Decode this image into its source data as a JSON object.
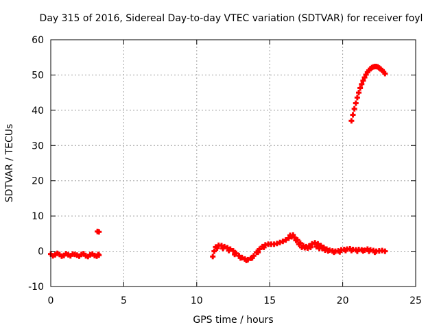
{
  "chart_data": {
    "type": "scatter",
    "title": "Day 315 of 2016, Sidereal Day-to-day VTEC variation (SDTVAR) for receiver foyl",
    "xlabel": "GPS time / hours",
    "ylabel": "SDTVAR / TECUs",
    "xlim": [
      0,
      25
    ],
    "ylim": [
      -10,
      60
    ],
    "xticks": [
      0,
      5,
      10,
      15,
      20,
      25
    ],
    "yticks": [
      -10,
      0,
      10,
      20,
      30,
      40,
      50,
      60
    ],
    "grid": true,
    "marker": "plus",
    "series": [
      {
        "name": "SDTVAR",
        "color": "#ff0000",
        "segments": [
          [
            [
              0.0,
              -0.8
            ],
            [
              0.3,
              -1.0
            ],
            [
              0.6,
              -0.9
            ],
            [
              0.9,
              -1.2
            ],
            [
              1.2,
              -1.0
            ],
            [
              1.5,
              -0.8
            ],
            [
              1.8,
              -1.1
            ],
            [
              2.1,
              -0.9
            ],
            [
              2.4,
              -1.3
            ],
            [
              2.7,
              -1.0
            ],
            [
              3.0,
              -1.2
            ],
            [
              3.3,
              -1.1
            ],
            [
              0.15,
              -1.3
            ],
            [
              0.45,
              -0.6
            ],
            [
              0.75,
              -1.4
            ],
            [
              1.05,
              -0.7
            ],
            [
              1.35,
              -1.3
            ],
            [
              1.65,
              -0.9
            ],
            [
              1.95,
              -1.4
            ],
            [
              2.25,
              -0.7
            ],
            [
              2.55,
              -1.5
            ],
            [
              2.85,
              -0.8
            ],
            [
              3.15,
              -1.4
            ],
            [
              3.25,
              -0.9
            ]
          ],
          [
            [
              3.2,
              5.6
            ],
            [
              3.3,
              5.5
            ]
          ],
          [
            [
              11.1,
              -1.5
            ],
            [
              11.2,
              0.0
            ],
            [
              11.3,
              1.2
            ],
            [
              11.5,
              1.7
            ],
            [
              11.7,
              1.6
            ],
            [
              11.9,
              1.3
            ],
            [
              12.1,
              1.0
            ],
            [
              12.3,
              0.6
            ],
            [
              12.5,
              0.1
            ],
            [
              12.7,
              -0.6
            ],
            [
              12.9,
              -1.3
            ],
            [
              13.1,
              -1.8
            ],
            [
              13.3,
              -2.2
            ],
            [
              13.5,
              -2.4
            ],
            [
              13.7,
              -2.0
            ],
            [
              13.9,
              -1.3
            ],
            [
              14.1,
              -0.3
            ],
            [
              14.3,
              0.6
            ],
            [
              14.5,
              1.3
            ],
            [
              14.7,
              1.8
            ],
            [
              14.9,
              2.0
            ],
            [
              15.1,
              2.0
            ],
            [
              15.3,
              2.0
            ],
            [
              15.5,
              2.2
            ],
            [
              15.7,
              2.5
            ],
            [
              15.9,
              2.8
            ],
            [
              16.1,
              3.2
            ],
            [
              16.3,
              3.7
            ],
            [
              16.5,
              4.1
            ],
            [
              16.7,
              3.9
            ],
            [
              16.9,
              3.2
            ],
            [
              17.1,
              2.3
            ],
            [
              17.3,
              1.6
            ],
            [
              17.5,
              1.3
            ],
            [
              17.7,
              1.5
            ],
            [
              17.9,
              2.1
            ],
            [
              18.1,
              2.4
            ],
            [
              18.3,
              2.1
            ],
            [
              18.5,
              1.6
            ],
            [
              18.7,
              1.1
            ],
            [
              18.9,
              0.6
            ],
            [
              19.1,
              0.3
            ],
            [
              19.3,
              0.1
            ],
            [
              19.5,
              0.0
            ],
            [
              19.7,
              0.1
            ],
            [
              19.9,
              0.4
            ],
            [
              20.1,
              0.5
            ],
            [
              20.3,
              0.6
            ],
            [
              20.5,
              0.7
            ],
            [
              20.7,
              0.5
            ],
            [
              20.9,
              0.4
            ],
            [
              21.1,
              0.5
            ],
            [
              21.3,
              0.4
            ],
            [
              21.5,
              0.3
            ],
            [
              21.7,
              0.6
            ],
            [
              21.9,
              0.4
            ],
            [
              22.1,
              0.2
            ],
            [
              22.3,
              0.0
            ],
            [
              22.5,
              0.1
            ],
            [
              22.7,
              0.2
            ],
            [
              22.9,
              0.0
            ],
            [
              11.4,
              0.9
            ],
            [
              11.8,
              0.8
            ],
            [
              12.2,
              0.2
            ],
            [
              12.6,
              -0.9
            ],
            [
              13.0,
              -1.9
            ],
            [
              13.4,
              -2.6
            ],
            [
              13.8,
              -1.9
            ],
            [
              14.2,
              -0.3
            ],
            [
              14.6,
              1.1
            ],
            [
              16.6,
              4.6
            ],
            [
              16.8,
              3.1
            ],
            [
              17.0,
              2.0
            ],
            [
              17.4,
              1.0
            ],
            [
              17.8,
              1.1
            ],
            [
              18.2,
              1.3
            ],
            [
              18.6,
              0.8
            ],
            [
              19.0,
              0.1
            ],
            [
              19.4,
              -0.3
            ],
            [
              19.8,
              -0.2
            ],
            [
              20.2,
              0.2
            ],
            [
              20.6,
              0.2
            ],
            [
              21.0,
              0.0
            ],
            [
              21.4,
              0.1
            ],
            [
              21.8,
              0.0
            ],
            [
              22.2,
              -0.3
            ],
            [
              16.4,
              4.5
            ],
            [
              17.2,
              1.1
            ],
            [
              17.6,
              0.9
            ],
            [
              18.4,
              0.8
            ],
            [
              18.8,
              0.3
            ]
          ],
          [
            [
              20.6,
              37.0
            ],
            [
              20.7,
              38.7
            ],
            [
              20.8,
              40.4
            ],
            [
              20.9,
              42.0
            ],
            [
              21.0,
              43.6
            ],
            [
              21.1,
              45.0
            ],
            [
              21.2,
              46.3
            ],
            [
              21.3,
              47.4
            ],
            [
              21.4,
              48.4
            ],
            [
              21.5,
              49.3
            ],
            [
              21.6,
              50.1
            ],
            [
              21.7,
              50.8
            ],
            [
              21.8,
              51.3
            ],
            [
              21.9,
              51.8
            ],
            [
              22.0,
              52.1
            ],
            [
              22.1,
              52.3
            ],
            [
              22.2,
              52.4
            ],
            [
              22.3,
              52.4
            ],
            [
              22.4,
              52.3
            ],
            [
              22.5,
              52.0
            ],
            [
              22.6,
              51.7
            ],
            [
              22.7,
              51.3
            ],
            [
              22.8,
              50.9
            ],
            [
              22.9,
              50.4
            ]
          ]
        ]
      }
    ]
  }
}
